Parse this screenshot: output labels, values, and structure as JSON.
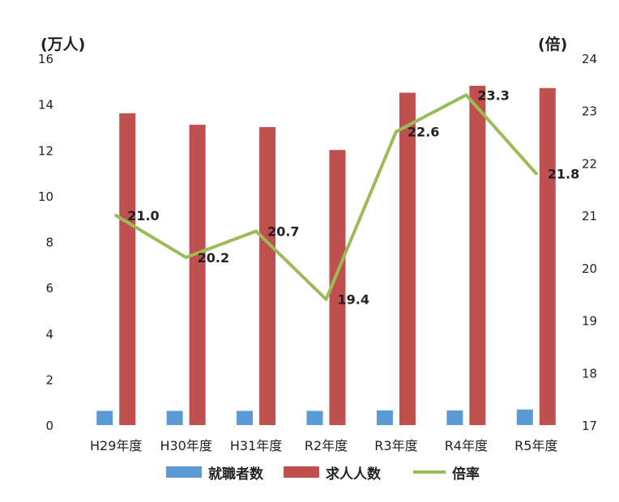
{
  "chart_data": {
    "type": "bar+line",
    "categories": [
      "H29年度",
      "H30年度",
      "H31年度",
      "R2年度",
      "R3年度",
      "R4年度",
      "R5年度"
    ],
    "series": [
      {
        "name": "就職者数",
        "axis": "left",
        "kind": "bar",
        "color": "#5b9bd5",
        "values": [
          0.62,
          0.62,
          0.62,
          0.62,
          0.64,
          0.64,
          0.68
        ]
      },
      {
        "name": "求人人数",
        "axis": "left",
        "kind": "bar",
        "color": "#c0504d",
        "values": [
          13.6,
          13.1,
          13.0,
          12.0,
          14.5,
          14.8,
          14.7
        ]
      },
      {
        "name": "倍率",
        "axis": "right",
        "kind": "line",
        "color": "#9bbb59",
        "values": [
          21.0,
          20.2,
          20.7,
          19.4,
          22.6,
          23.3,
          21.8
        ],
        "labels": [
          "21.0",
          "20.2",
          "20.7",
          "19.4",
          "22.6",
          "23.3",
          "21.8"
        ]
      }
    ],
    "left_axis": {
      "unit": "(万人)",
      "ylim": [
        0,
        16
      ],
      "ticks": [
        "0",
        "2",
        "4",
        "6",
        "8",
        "10",
        "12",
        "14",
        "16"
      ]
    },
    "right_axis": {
      "unit": "(倍)",
      "ylim": [
        17,
        24
      ],
      "ticks": [
        "17",
        "18",
        "19",
        "20",
        "21",
        "22",
        "23",
        "24"
      ]
    },
    "grid": false,
    "legend_position": "bottom"
  },
  "legend": {
    "items": [
      {
        "label": "就職者数",
        "color": "#5b9bd5"
      },
      {
        "label": "求人人数",
        "color": "#c0504d"
      },
      {
        "label": "倍率",
        "color": "#9bbb59"
      }
    ]
  }
}
